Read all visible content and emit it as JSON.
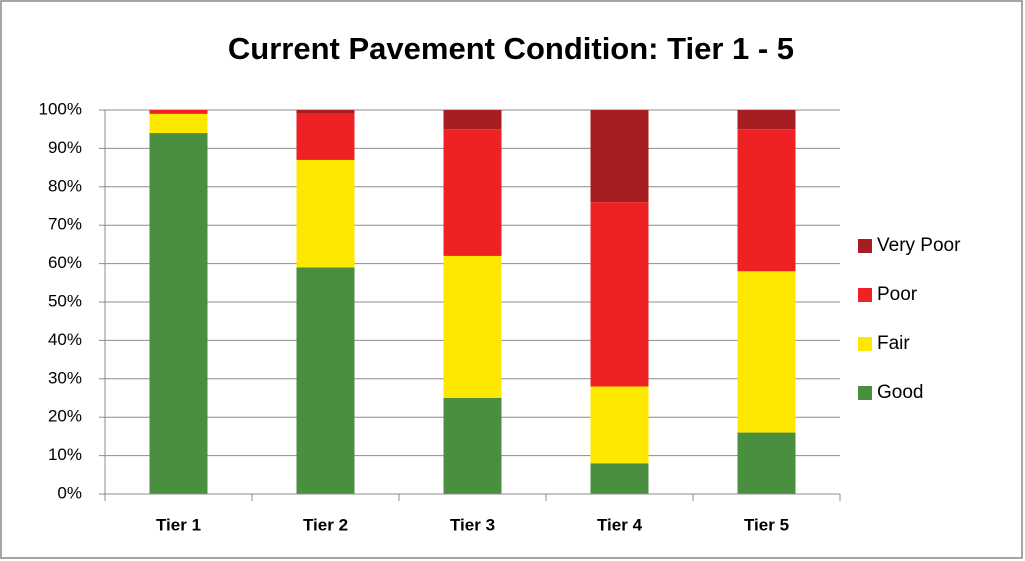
{
  "chart_data": {
    "type": "stacked_bar",
    "title": "Current Pavement Condition: Tier 1 - 5",
    "categories": [
      "Tier 1",
      "Tier 2",
      "Tier 3",
      "Tier 4",
      "Tier 5"
    ],
    "series": [
      {
        "name": "Good",
        "color": "#4a8f3f",
        "values": [
          94,
          59,
          25,
          8,
          16
        ]
      },
      {
        "name": "Fair",
        "color": "#ffe800",
        "values": [
          5,
          28,
          37,
          20,
          42
        ]
      },
      {
        "name": "Poor",
        "color": "#ee2224",
        "values": [
          1,
          12,
          33,
          48,
          37
        ]
      },
      {
        "name": "Very Poor",
        "color": "#a61e22",
        "values": [
          0,
          1,
          5,
          24,
          5
        ]
      }
    ],
    "ylim": [
      0,
      100
    ],
    "yticks": [
      {
        "value": 0,
        "label": "0%"
      },
      {
        "value": 10,
        "label": "10%"
      },
      {
        "value": 20,
        "label": "20%"
      },
      {
        "value": 30,
        "label": "30%"
      },
      {
        "value": 40,
        "label": "40%"
      },
      {
        "value": 50,
        "label": "50%"
      },
      {
        "value": 60,
        "label": "60%"
      },
      {
        "value": 70,
        "label": "70%"
      },
      {
        "value": 80,
        "label": "80%"
      },
      {
        "value": 90,
        "label": "90%"
      },
      {
        "value": 100,
        "label": "100%"
      }
    ],
    "grid": true,
    "legend": "right"
  }
}
